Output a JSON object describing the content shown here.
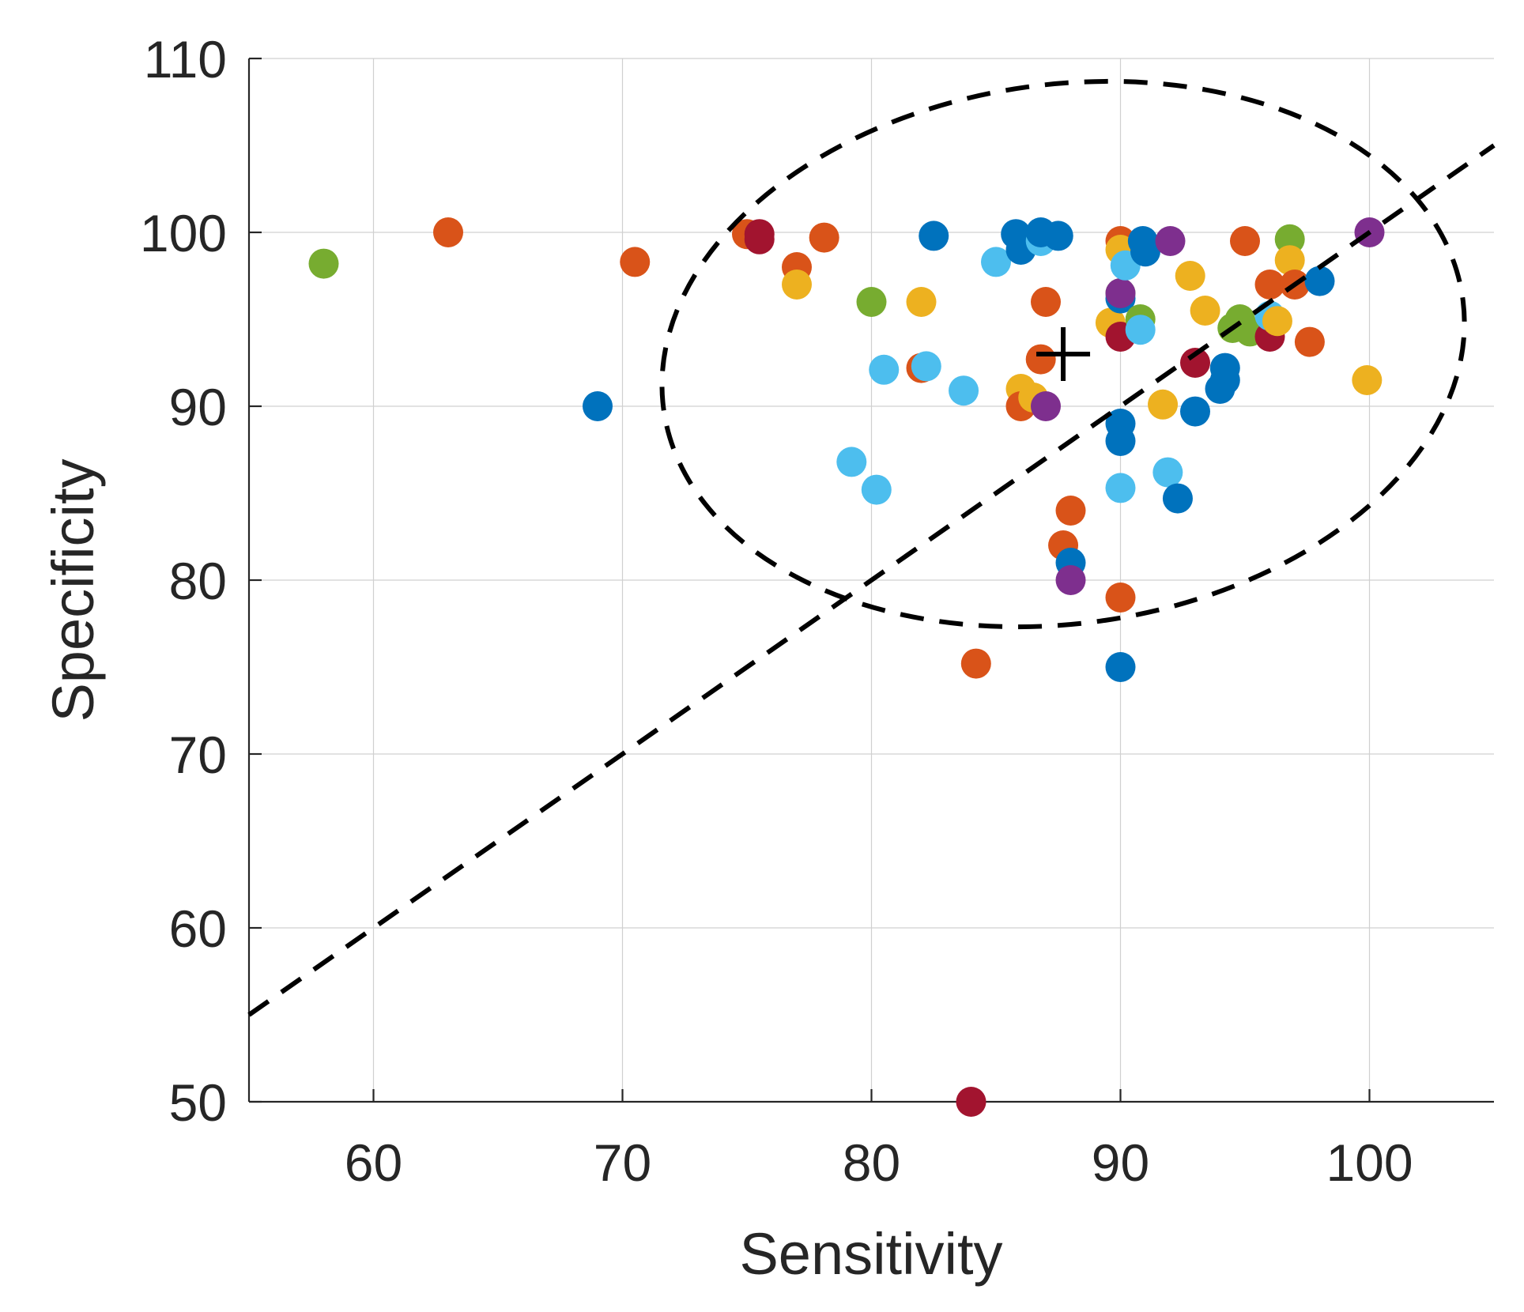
{
  "chart_data": {
    "type": "scatter",
    "title": "",
    "xlabel": "Sensitivity",
    "ylabel": "Specificity",
    "xlim": [
      55,
      105
    ],
    "ylim": [
      50,
      110
    ],
    "xticks": [
      60,
      70,
      80,
      90,
      100
    ],
    "yticks": [
      50,
      60,
      70,
      80,
      90,
      100,
      110
    ],
    "grid": true,
    "palette": {
      "blue": "#0072bd",
      "orange": "#d95319",
      "yellow": "#edb120",
      "purple": "#7e2f8e",
      "green": "#77ac30",
      "lightblue": "#4dbeee",
      "darkred": "#a2142f",
      "axis": "#262626",
      "grid": "#d0d0d0",
      "annotation": "#000000"
    },
    "points": [
      {
        "x": 58,
        "y": 98.2,
        "color": "green"
      },
      {
        "x": 63,
        "y": 100,
        "color": "orange"
      },
      {
        "x": 69,
        "y": 90,
        "color": "blue"
      },
      {
        "x": 70.5,
        "y": 98.3,
        "color": "orange"
      },
      {
        "x": 75,
        "y": 99.9,
        "color": "orange"
      },
      {
        "x": 75.5,
        "y": 99.9,
        "color": "darkred"
      },
      {
        "x": 75.5,
        "y": 99.6,
        "color": "darkred"
      },
      {
        "x": 77,
        "y": 98,
        "color": "orange"
      },
      {
        "x": 77,
        "y": 97,
        "color": "yellow"
      },
      {
        "x": 78.1,
        "y": 99.7,
        "color": "orange"
      },
      {
        "x": 79.2,
        "y": 86.8,
        "color": "lightblue"
      },
      {
        "x": 80,
        "y": 96,
        "color": "green"
      },
      {
        "x": 80.2,
        "y": 85.2,
        "color": "lightblue"
      },
      {
        "x": 80.5,
        "y": 92.1,
        "color": "lightblue"
      },
      {
        "x": 82,
        "y": 96,
        "color": "yellow"
      },
      {
        "x": 82,
        "y": 92.2,
        "color": "orange"
      },
      {
        "x": 82.2,
        "y": 92.3,
        "color": "lightblue"
      },
      {
        "x": 82.5,
        "y": 99.8,
        "color": "blue"
      },
      {
        "x": 83.7,
        "y": 90.9,
        "color": "lightblue"
      },
      {
        "x": 84,
        "y": 50,
        "color": "darkred"
      },
      {
        "x": 84.2,
        "y": 75.2,
        "color": "orange"
      },
      {
        "x": 85,
        "y": 98.3,
        "color": "lightblue"
      },
      {
        "x": 85.8,
        "y": 99.9,
        "color": "blue"
      },
      {
        "x": 86,
        "y": 99,
        "color": "blue"
      },
      {
        "x": 86,
        "y": 91,
        "color": "yellow"
      },
      {
        "x": 86,
        "y": 90,
        "color": "orange"
      },
      {
        "x": 86.5,
        "y": 90.5,
        "color": "yellow"
      },
      {
        "x": 86.8,
        "y": 92.7,
        "color": "orange"
      },
      {
        "x": 86.8,
        "y": 99.5,
        "color": "lightblue"
      },
      {
        "x": 86.8,
        "y": 100,
        "color": "blue"
      },
      {
        "x": 87,
        "y": 96,
        "color": "orange"
      },
      {
        "x": 87,
        "y": 90,
        "color": "purple"
      },
      {
        "x": 87.5,
        "y": 99.8,
        "color": "blue"
      },
      {
        "x": 87.7,
        "y": 82,
        "color": "orange"
      },
      {
        "x": 88,
        "y": 84,
        "color": "orange"
      },
      {
        "x": 88,
        "y": 81,
        "color": "blue"
      },
      {
        "x": 88,
        "y": 80,
        "color": "purple"
      },
      {
        "x": 89.6,
        "y": 94.8,
        "color": "yellow"
      },
      {
        "x": 90,
        "y": 99.5,
        "color": "orange"
      },
      {
        "x": 90,
        "y": 99,
        "color": "yellow"
      },
      {
        "x": 90,
        "y": 96.5,
        "color": "green"
      },
      {
        "x": 90,
        "y": 96.2,
        "color": "blue"
      },
      {
        "x": 90,
        "y": 96.5,
        "color": "purple"
      },
      {
        "x": 90,
        "y": 94,
        "color": "darkred"
      },
      {
        "x": 90,
        "y": 89,
        "color": "blue"
      },
      {
        "x": 90,
        "y": 88,
        "color": "blue"
      },
      {
        "x": 90,
        "y": 85.3,
        "color": "lightblue"
      },
      {
        "x": 90,
        "y": 79,
        "color": "orange"
      },
      {
        "x": 90,
        "y": 75,
        "color": "blue"
      },
      {
        "x": 90.2,
        "y": 98.1,
        "color": "lightblue"
      },
      {
        "x": 90.8,
        "y": 95,
        "color": "green"
      },
      {
        "x": 90.8,
        "y": 94.4,
        "color": "lightblue"
      },
      {
        "x": 90.9,
        "y": 99.5,
        "color": "blue"
      },
      {
        "x": 91,
        "y": 98.9,
        "color": "blue"
      },
      {
        "x": 91.7,
        "y": 90.1,
        "color": "yellow"
      },
      {
        "x": 91.9,
        "y": 86.2,
        "color": "lightblue"
      },
      {
        "x": 92,
        "y": 99.5,
        "color": "purple"
      },
      {
        "x": 92.3,
        "y": 84.7,
        "color": "blue"
      },
      {
        "x": 92.8,
        "y": 97.5,
        "color": "yellow"
      },
      {
        "x": 93,
        "y": 89.7,
        "color": "blue"
      },
      {
        "x": 93,
        "y": 92.5,
        "color": "darkred"
      },
      {
        "x": 93.4,
        "y": 95.5,
        "color": "yellow"
      },
      {
        "x": 94,
        "y": 91,
        "color": "blue"
      },
      {
        "x": 94.2,
        "y": 91.5,
        "color": "blue"
      },
      {
        "x": 94.2,
        "y": 92.2,
        "color": "blue"
      },
      {
        "x": 94.5,
        "y": 94.5,
        "color": "green"
      },
      {
        "x": 94.8,
        "y": 95,
        "color": "green"
      },
      {
        "x": 95,
        "y": 99.5,
        "color": "orange"
      },
      {
        "x": 95.2,
        "y": 94.3,
        "color": "green"
      },
      {
        "x": 96,
        "y": 97,
        "color": "orange"
      },
      {
        "x": 96,
        "y": 94,
        "color": "darkred"
      },
      {
        "x": 96,
        "y": 95.2,
        "color": "lightblue"
      },
      {
        "x": 96.3,
        "y": 94.9,
        "color": "yellow"
      },
      {
        "x": 96.8,
        "y": 99.6,
        "color": "green"
      },
      {
        "x": 96.8,
        "y": 98.4,
        "color": "yellow"
      },
      {
        "x": 97,
        "y": 97,
        "color": "orange"
      },
      {
        "x": 97.6,
        "y": 93.7,
        "color": "orange"
      },
      {
        "x": 98,
        "y": 97.2,
        "color": "blue"
      },
      {
        "x": 99.9,
        "y": 91.5,
        "color": "yellow"
      },
      {
        "x": 100,
        "y": 100,
        "color": "purple"
      }
    ],
    "annotations": {
      "mean_marker": {
        "x": 87.7,
        "y": 93,
        "symbol": "+"
      },
      "diagonal_line": {
        "from": [
          55,
          55
        ],
        "to": [
          105,
          105
        ],
        "style": "dashed"
      },
      "ellipse": {
        "cx": 87.7,
        "cy": 93,
        "rx": 16.2,
        "ry": 15.5,
        "angle_deg": -8,
        "style": "dashed"
      }
    }
  }
}
